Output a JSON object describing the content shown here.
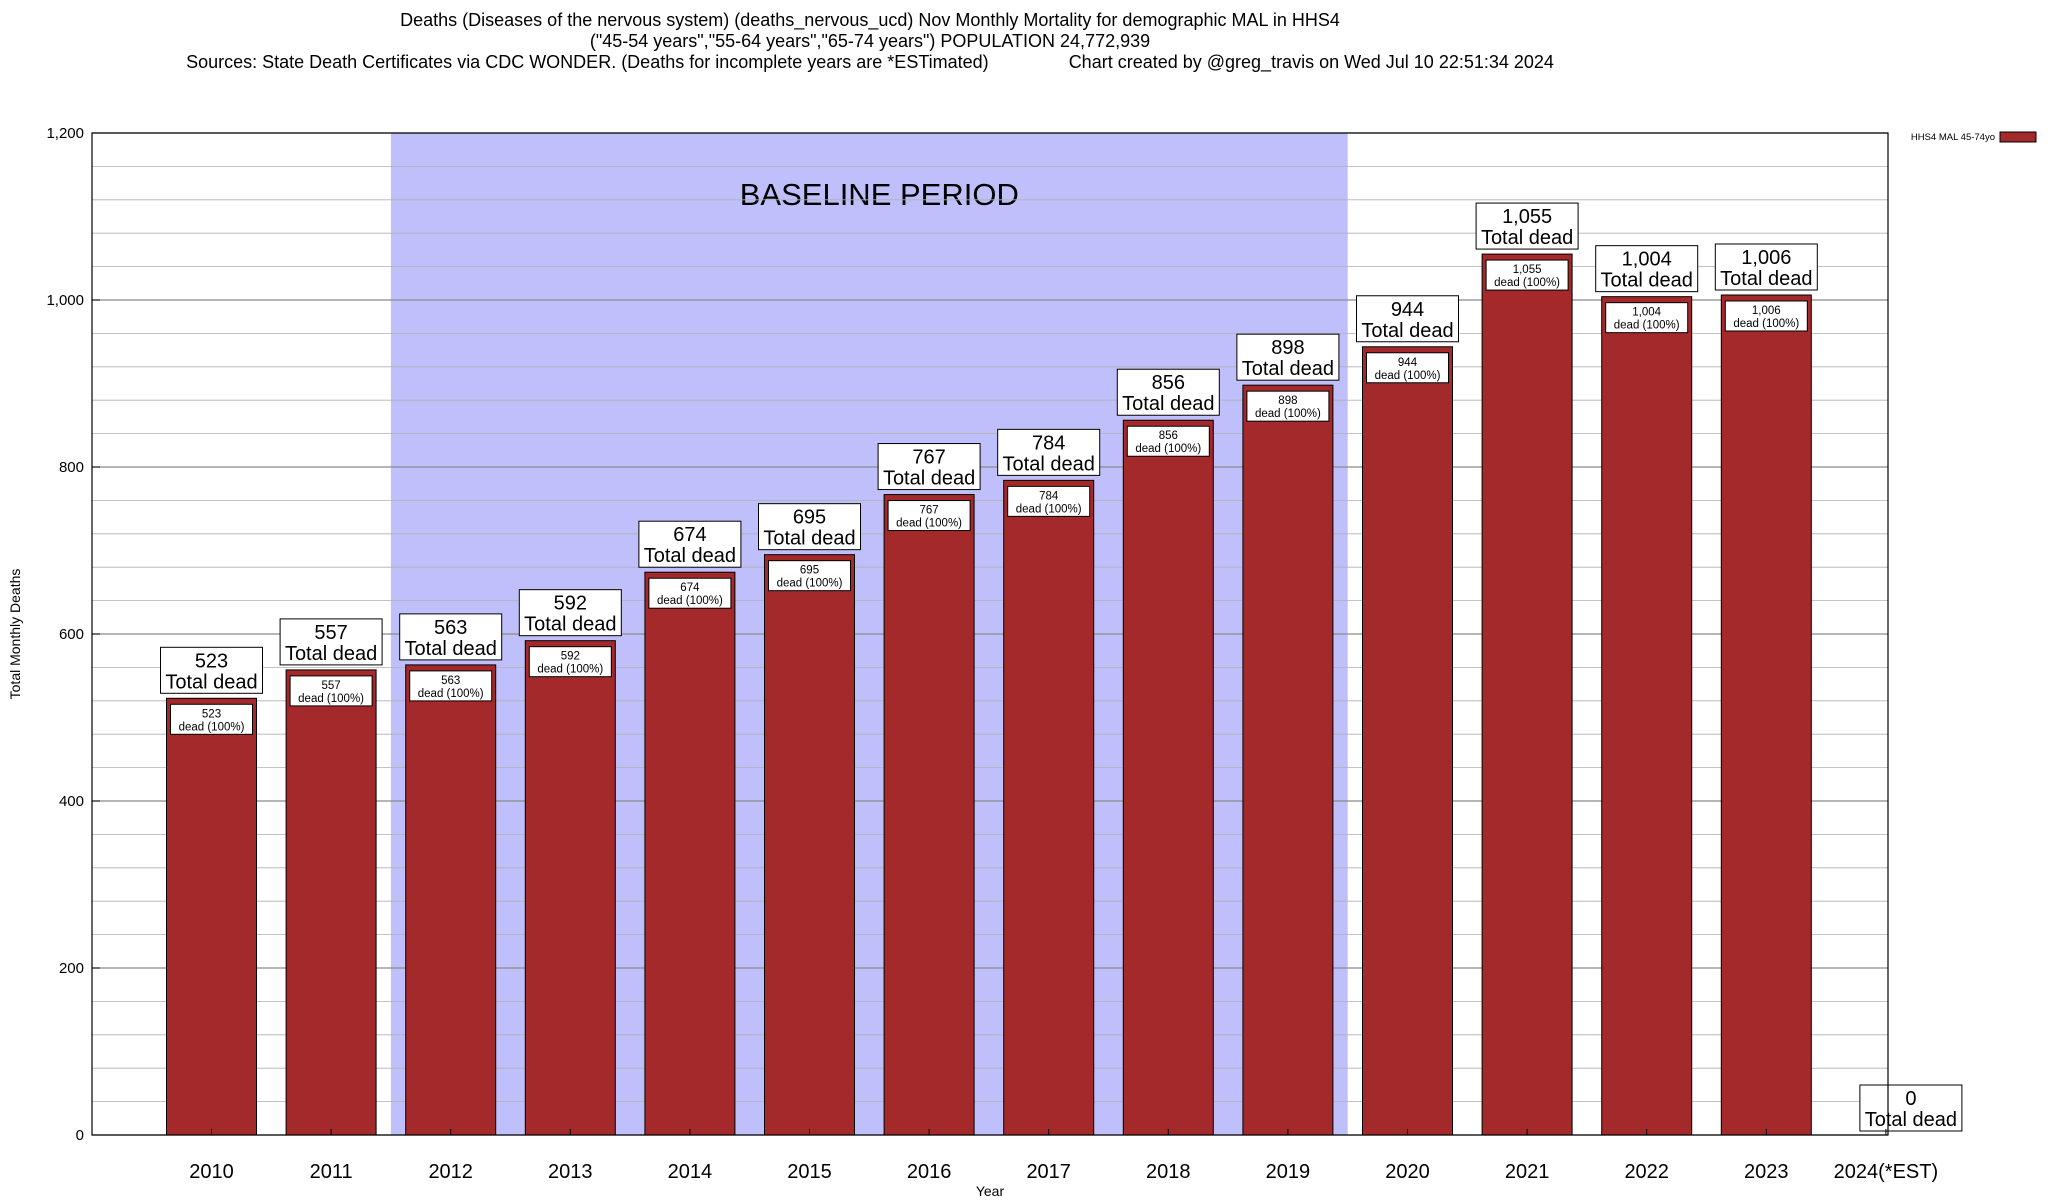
{
  "titles": {
    "line1": "Deaths (Diseases of the nervous system) (deaths_nervous_ucd) Nov Monthly Mortality for demographic MAL in HHS4",
    "line2": "(\"45-54 years\",\"55-64 years\",\"65-74 years\") POPULATION 24,772,939",
    "sources": "Sources: State Death Certificates via CDC WONDER. (Deaths for incomplete years are *ESTimated)",
    "credit": "Chart created by @greg_travis on Wed Jul 10 22:51:34 2024"
  },
  "colors": {
    "bar": "#a3292b",
    "baseline": "#bfbffb",
    "grid": "#b0b0b0"
  },
  "chart_data": {
    "type": "bar",
    "title": "Deaths (Diseases of the nervous system) (deaths_nervous_ucd) Nov Monthly Mortality for demographic MAL in HHS4",
    "xlabel": "Year",
    "ylabel": "Total Monthly Deaths",
    "ylim": [
      0,
      1200
    ],
    "yticks": [
      0,
      200,
      400,
      600,
      800,
      1000,
      1200
    ],
    "ytick_labels": [
      "0",
      "200",
      "400",
      "600",
      "800",
      "1,000",
      "1,200"
    ],
    "minor_step": 40,
    "legend": {
      "label": "HHS4 MAL 45-74yo",
      "position": "top-right"
    },
    "baseline": {
      "label": "BASELINE PERIOD",
      "from": "2012",
      "to": "2019"
    },
    "categories": [
      "2010",
      "2011",
      "2012",
      "2013",
      "2014",
      "2015",
      "2016",
      "2017",
      "2018",
      "2019",
      "2020",
      "2021",
      "2022",
      "2023",
      "2024(*EST)"
    ],
    "series": [
      {
        "name": "HHS4 MAL 45-74yo",
        "values": [
          523,
          557,
          563,
          592,
          674,
          695,
          767,
          784,
          856,
          898,
          944,
          1055,
          1004,
          1006,
          0
        ]
      }
    ],
    "total_labels": [
      "523",
      "557",
      "563",
      "592",
      "674",
      "695",
      "767",
      "784",
      "856",
      "898",
      "944",
      "1,055",
      "1,004",
      "1,006",
      "0"
    ],
    "total_suffix": "Total dead",
    "inner_labels": [
      "523",
      "557",
      "563",
      "592",
      "674",
      "695",
      "767",
      "784",
      "856",
      "898",
      "944",
      "1,055",
      "1,004",
      "1,006",
      ""
    ],
    "inner_suffix": "dead (100%)"
  }
}
